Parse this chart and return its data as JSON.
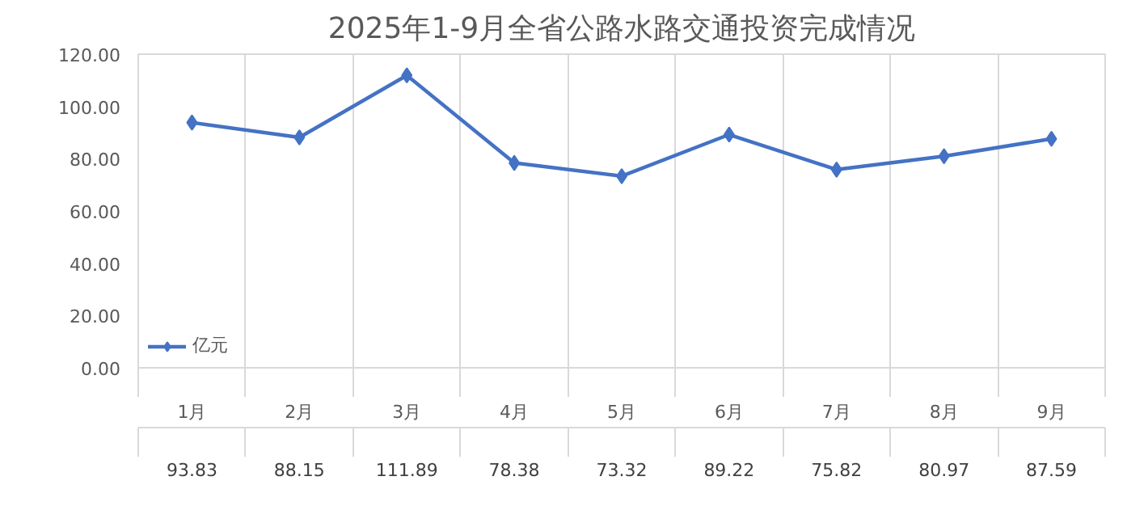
{
  "chart_data": {
    "type": "line",
    "title": "2025年1-9月全省公路水路交通投资完成情况",
    "categories": [
      "1月",
      "2月",
      "3月",
      "4月",
      "5月",
      "6月",
      "7月",
      "8月",
      "9月"
    ],
    "series": [
      {
        "name": "亿元",
        "color": "#4472c4",
        "values": [
          93.83,
          88.15,
          111.89,
          78.38,
          73.32,
          89.22,
          75.82,
          80.97,
          87.59
        ]
      }
    ],
    "ylim": [
      0,
      120
    ],
    "yticks": [
      {
        "value": 0,
        "label": "0.00"
      },
      {
        "value": 20,
        "label": "20.00"
      },
      {
        "value": 40,
        "label": "40.00"
      },
      {
        "value": 60,
        "label": "60.00"
      },
      {
        "value": 80,
        "label": "80.00"
      },
      {
        "value": 100,
        "label": "100.00"
      },
      {
        "value": 120,
        "label": "120.00"
      }
    ],
    "grid": "x",
    "marker": "diamond",
    "line_style": "solid",
    "data_labels": true,
    "legend": "bottom left"
  }
}
